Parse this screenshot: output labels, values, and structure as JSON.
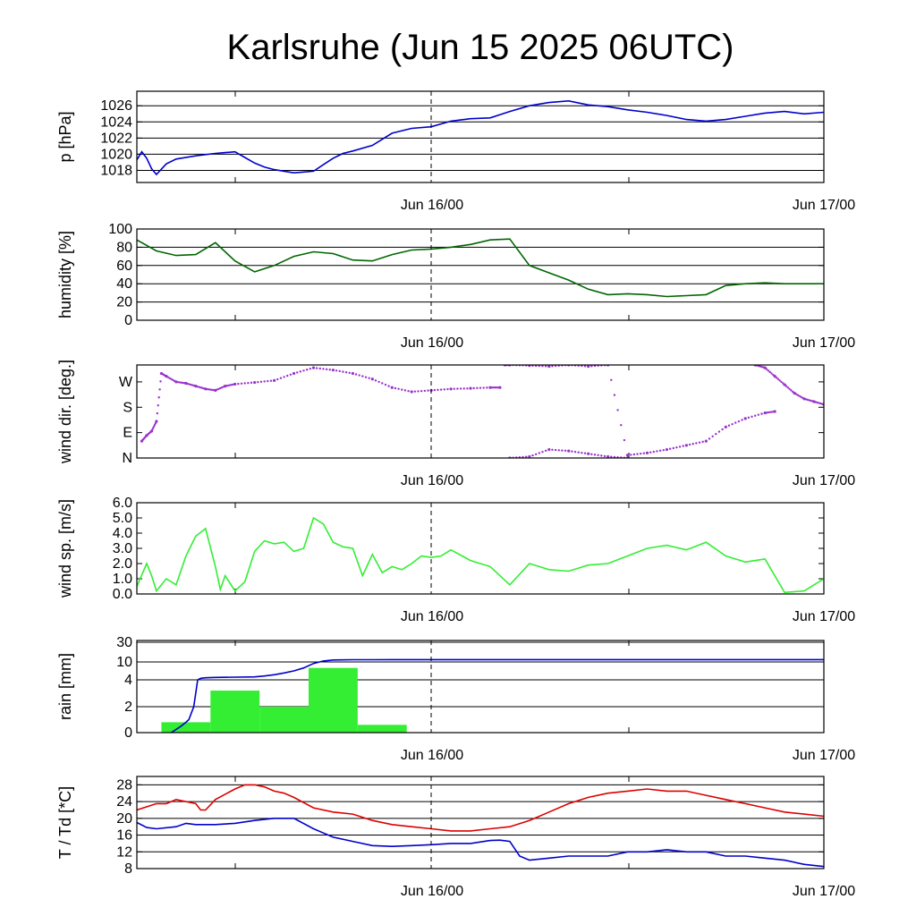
{
  "title": "Karlsruhe (Jun 15 2025 06UTC)",
  "x_tick_labels": [
    "Jun 16/00",
    "Jun 17/00"
  ],
  "chart_data": [
    {
      "id": "pressure",
      "type": "line",
      "ylabel": "p [hPa]",
      "ylim": [
        1016.5,
        1027.8
      ],
      "yticks": [
        1018,
        1020,
        1022,
        1024,
        1026
      ],
      "ytick_labels": [
        "1018",
        "1020",
        "1022",
        "1024",
        "1026"
      ],
      "grid": true,
      "x_unit": "hours after Jun 15 06UTC",
      "series": [
        {
          "color": "#0000cc",
          "x": [
            0,
            0.5,
            1,
            1.5,
            2,
            3,
            4,
            6,
            8,
            9,
            10,
            11,
            12,
            13,
            14,
            15,
            16,
            17,
            18,
            19,
            20,
            21,
            22,
            24,
            26,
            28,
            30,
            32,
            34,
            36,
            38,
            40,
            42,
            44,
            46,
            48,
            50,
            52,
            54,
            56,
            58,
            60,
            62,
            64,
            66,
            68,
            70
          ],
          "y": [
            1019.3,
            1020.3,
            1019.5,
            1018.2,
            1017.5,
            1018.8,
            1019.4,
            1019.8,
            1020.1,
            1020.2,
            1020.3,
            1019.6,
            1018.9,
            1018.4,
            1018.1,
            1017.9,
            1017.7,
            1017.8,
            1017.9,
            1018.7,
            1019.5,
            1020.1,
            1020.4,
            1021.1,
            1022.6,
            1023.2,
            1023.4,
            1024.1,
            1024.4,
            1024.5,
            1025.3,
            1026.0,
            1026.4,
            1026.6,
            1026.1,
            1025.9,
            1025.5,
            1025.2,
            1024.8,
            1024.3,
            1024.1,
            1024.3,
            1024.7,
            1025.1,
            1025.3,
            1025.0,
            1025.2
          ]
        }
      ]
    },
    {
      "id": "humidity",
      "type": "line",
      "ylabel": "humidity [%]",
      "ylim": [
        0,
        100
      ],
      "yticks": [
        0,
        20,
        40,
        60,
        80,
        100
      ],
      "ytick_labels": [
        "0",
        "20",
        "40",
        "60",
        "80",
        "100"
      ],
      "grid": true,
      "series": [
        {
          "color": "#006600",
          "x": [
            0,
            2,
            4,
            6,
            8,
            10,
            12,
            14,
            16,
            18,
            20,
            22,
            24,
            26,
            28,
            30,
            32,
            34,
            36,
            38,
            40,
            42,
            44,
            46,
            48,
            50,
            52,
            54,
            56,
            58,
            60,
            62,
            64,
            66,
            68,
            70
          ],
          "y": [
            88,
            76,
            71,
            72,
            85,
            65,
            53,
            60,
            70,
            75,
            73,
            66,
            65,
            72,
            77,
            78,
            80,
            83,
            88,
            89,
            60,
            52,
            44,
            34,
            28,
            29,
            28,
            26,
            27,
            28,
            38,
            40,
            41,
            40,
            40,
            40
          ]
        }
      ]
    },
    {
      "id": "wind_dir",
      "type": "scatter",
      "ylabel": "wind dir. [deg.]",
      "ylim": [
        0,
        330
      ],
      "yticks": [
        0,
        90,
        180,
        270
      ],
      "ytick_labels": [
        "N",
        "E",
        "S",
        "W"
      ],
      "grid": false,
      "series": [
        {
          "color": "#9933cc",
          "x": [
            0.5,
            1,
            1.5,
            2,
            2.5,
            3,
            4,
            5,
            6,
            7,
            8,
            9,
            10,
            12,
            14,
            16,
            18,
            20,
            22,
            24,
            26,
            28,
            30,
            32,
            34,
            36,
            37
          ],
          "y": [
            60,
            80,
            95,
            130,
            300,
            290,
            270,
            265,
            255,
            245,
            240,
            255,
            262,
            268,
            275,
            300,
            320,
            312,
            300,
            280,
            250,
            235,
            240,
            245,
            247,
            250,
            250
          ]
        },
        {
          "color": "#9933cc",
          "x": [
            37.5,
            38,
            40,
            42,
            44,
            46,
            48,
            50,
            52,
            54,
            56,
            58,
            60,
            62,
            64,
            65
          ],
          "y": [
            330,
            330,
            328,
            325,
            330,
            325,
            330,
            10,
            18,
            30,
            45,
            60,
            110,
            140,
            160,
            165
          ]
        },
        {
          "color": "#9933cc",
          "x": [
            38,
            40,
            42,
            44,
            46,
            48,
            50
          ],
          "y": [
            0,
            5,
            30,
            25,
            15,
            5,
            0
          ]
        },
        {
          "color": "#9933cc",
          "x": [
            63,
            64,
            65,
            66,
            67,
            68,
            69,
            70
          ],
          "y": [
            330,
            320,
            290,
            260,
            230,
            210,
            200,
            190
          ]
        }
      ]
    },
    {
      "id": "wind_speed",
      "type": "line",
      "ylabel": "wind sp. [m/s]",
      "ylim": [
        0,
        6.0
      ],
      "yticks": [
        0.0,
        1.0,
        2.0,
        3.0,
        4.0,
        5.0,
        6.0
      ],
      "ytick_labels": [
        "0.0",
        "1.0",
        "2.0",
        "3.0",
        "4.0",
        "5.0",
        "6.0"
      ],
      "grid": false,
      "series": [
        {
          "color": "#33ee33",
          "x": [
            0,
            1,
            1.5,
            2,
            3,
            4,
            5,
            6,
            7,
            8,
            8.5,
            9,
            10,
            11,
            12,
            13,
            14,
            15,
            16,
            17,
            18,
            19,
            20,
            21,
            22,
            23,
            24,
            25,
            26,
            27,
            28,
            29,
            30,
            31,
            32,
            34,
            36,
            38,
            40,
            42,
            44,
            46,
            48,
            50,
            52,
            54,
            56,
            58,
            60,
            62,
            64,
            66,
            68,
            70
          ],
          "y": [
            0.5,
            2.0,
            1.2,
            0.2,
            1.0,
            0.6,
            2.5,
            3.8,
            4.3,
            1.8,
            0.3,
            1.2,
            0.2,
            0.8,
            2.8,
            3.5,
            3.3,
            3.4,
            2.8,
            3.0,
            5.0,
            4.6,
            3.4,
            3.1,
            3.0,
            1.2,
            2.6,
            1.4,
            1.8,
            1.6,
            2.0,
            2.5,
            2.4,
            2.5,
            2.9,
            2.2,
            1.8,
            0.6,
            2.0,
            1.6,
            1.5,
            1.9,
            2.0,
            2.5,
            3.0,
            3.2,
            2.9,
            3.4,
            2.5,
            2.1,
            2.3,
            0.1,
            0.2,
            1.0
          ]
        }
      ]
    },
    {
      "id": "rain",
      "type": "bar",
      "ylabel": "rain [mm]",
      "yticks": [
        0,
        2,
        4,
        10,
        30
      ],
      "ytick_labels": [
        "0",
        "2",
        "4",
        "10",
        "30"
      ],
      "grid": true,
      "bars": [
        {
          "x_start": 2.5,
          "x_end": 7.5,
          "value": 0.8
        },
        {
          "x_start": 7.5,
          "x_end": 12.5,
          "value": 3.2
        },
        {
          "x_start": 12.5,
          "x_end": 17.5,
          "value": 2.0
        },
        {
          "x_start": 17.5,
          "x_end": 22.5,
          "value": 8.0
        },
        {
          "x_start": 22.5,
          "x_end": 27.5,
          "value": 0.6
        }
      ],
      "bar_color": "#33ee33",
      "series": [
        {
          "color": "#0000cc",
          "x": [
            3.5,
            4.5,
            5,
            5.3,
            5.8,
            6.2,
            6.5,
            7,
            8,
            10,
            12,
            13,
            14,
            15,
            16,
            17,
            18,
            19,
            20,
            22,
            24,
            26,
            30,
            34,
            40,
            50,
            60,
            70
          ],
          "y": [
            0,
            0.5,
            0.8,
            1.0,
            2.0,
            4.0,
            4.5,
            4.7,
            4.8,
            4.9,
            5.0,
            5.3,
            5.7,
            6.3,
            7.0,
            8.0,
            9.5,
            11.0,
            12.0,
            12.3,
            12.3,
            12.4,
            12.4,
            12.4,
            12.4,
            12.4,
            12.4,
            12.4
          ]
        }
      ]
    },
    {
      "id": "temperature",
      "type": "line",
      "ylabel": "T / Td [*C]",
      "ylim": [
        8,
        30
      ],
      "yticks": [
        8,
        12,
        16,
        20,
        24,
        28
      ],
      "ytick_labels": [
        "8",
        "12",
        "16",
        "20",
        "24",
        "28"
      ],
      "grid": true,
      "series": [
        {
          "color": "#dd0000",
          "x": [
            0,
            2,
            3,
            4,
            6,
            6.5,
            7,
            8,
            10,
            11,
            12,
            13,
            14,
            15,
            16,
            18,
            20,
            22,
            24,
            26,
            28,
            30,
            32,
            34,
            36,
            38,
            40,
            42,
            44,
            46,
            48,
            50,
            52,
            54,
            56,
            58,
            60,
            62,
            64,
            66,
            68,
            70
          ],
          "y": [
            22,
            23.5,
            23.5,
            24.5,
            23.5,
            22.0,
            22.0,
            24.5,
            27.0,
            28.0,
            28.0,
            27.5,
            26.5,
            26.0,
            25.0,
            22.5,
            21.5,
            21.0,
            19.5,
            18.5,
            18.0,
            17.5,
            17.0,
            17.0,
            17.5,
            18.0,
            19.5,
            21.5,
            23.5,
            25.0,
            26.0,
            26.5,
            27.0,
            26.5,
            26.5,
            25.5,
            24.5,
            23.5,
            22.5,
            21.5,
            21.0,
            20.5
          ]
        },
        {
          "color": "#0000cc",
          "x": [
            0,
            1,
            2,
            4,
            5,
            6,
            8,
            10,
            12,
            14,
            16,
            18,
            19,
            20,
            22,
            24,
            26,
            28,
            30,
            32,
            34,
            36,
            37,
            38,
            39,
            40,
            42,
            44,
            46,
            48,
            50,
            52,
            54,
            56,
            58,
            60,
            62,
            64,
            66,
            68,
            70
          ],
          "y": [
            19,
            17.8,
            17.5,
            18.0,
            18.8,
            18.5,
            18.5,
            18.8,
            19.5,
            20.0,
            20.0,
            17.5,
            16.5,
            15.5,
            14.5,
            13.5,
            13.3,
            13.5,
            13.7,
            14.0,
            14.0,
            14.7,
            14.8,
            14.5,
            11.0,
            10.0,
            10.5,
            11.0,
            11.0,
            11.0,
            12.0,
            12.0,
            12.5,
            12.0,
            12.0,
            11.0,
            11.0,
            10.5,
            10.0,
            9.0,
            8.5
          ]
        }
      ]
    }
  ]
}
